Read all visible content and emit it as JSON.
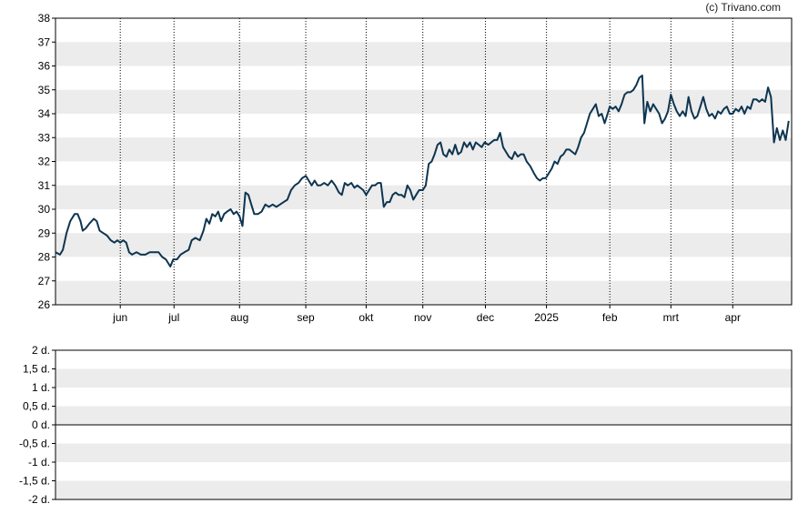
{
  "credit": "(c) Trivano.com",
  "colors": {
    "line": "#0d3550",
    "band": "#ececec",
    "grid": "#000000",
    "frame": "#000000"
  },
  "chart_data": [
    {
      "type": "line",
      "title": "",
      "xlabel": "",
      "ylabel": "",
      "ylim": [
        26,
        38
      ],
      "yticks": [
        26,
        27,
        28,
        29,
        30,
        31,
        32,
        33,
        34,
        35,
        36,
        37,
        38
      ],
      "ytick_labels": [
        "26",
        "27",
        "28",
        "29",
        "30",
        "31",
        "32",
        "33",
        "34",
        "35",
        "36",
        "37",
        "38"
      ],
      "xlim": [
        0,
        100
      ],
      "xticks": [
        {
          "x": 8.8,
          "label": "jun"
        },
        {
          "x": 16.1,
          "label": "jul"
        },
        {
          "x": 25.0,
          "label": "aug"
        },
        {
          "x": 34.0,
          "label": "sep"
        },
        {
          "x": 42.2,
          "label": "okt"
        },
        {
          "x": 49.9,
          "label": "nov"
        },
        {
          "x": 58.4,
          "label": "dec"
        },
        {
          "x": 66.7,
          "label": "2025"
        },
        {
          "x": 75.3,
          "label": "feb"
        },
        {
          "x": 83.6,
          "label": "mrt"
        },
        {
          "x": 92.0,
          "label": "apr"
        }
      ],
      "grid": "vertical dotted at month ticks, alternating horizontal bands",
      "series": [
        {
          "values": [
            [
              0,
              28.2
            ],
            [
              0.6,
              28.1
            ],
            [
              1.0,
              28.3
            ],
            [
              1.5,
              29.0
            ],
            [
              2.0,
              29.5
            ],
            [
              2.6,
              29.8
            ],
            [
              3.0,
              29.8
            ],
            [
              3.4,
              29.5
            ],
            [
              3.7,
              29.1
            ],
            [
              4.1,
              29.2
            ],
            [
              4.6,
              29.4
            ],
            [
              5.2,
              29.6
            ],
            [
              5.6,
              29.5
            ],
            [
              6.0,
              29.1
            ],
            [
              6.5,
              29.0
            ],
            [
              7.0,
              28.9
            ],
            [
              7.5,
              28.7
            ],
            [
              8.0,
              28.6
            ],
            [
              8.4,
              28.7
            ],
            [
              8.8,
              28.6
            ],
            [
              9.2,
              28.7
            ],
            [
              9.6,
              28.6
            ],
            [
              10.0,
              28.2
            ],
            [
              10.4,
              28.1
            ],
            [
              11.0,
              28.2
            ],
            [
              11.6,
              28.1
            ],
            [
              12.2,
              28.1
            ],
            [
              12.8,
              28.2
            ],
            [
              13.4,
              28.2
            ],
            [
              14.0,
              28.2
            ],
            [
              14.5,
              28.0
            ],
            [
              15.0,
              27.9
            ],
            [
              15.6,
              27.6
            ],
            [
              16.0,
              27.9
            ],
            [
              16.5,
              27.9
            ],
            [
              17.0,
              28.1
            ],
            [
              17.5,
              28.2
            ],
            [
              18.1,
              28.3
            ],
            [
              18.5,
              28.7
            ],
            [
              19.0,
              28.8
            ],
            [
              19.6,
              28.7
            ],
            [
              20.1,
              29.1
            ],
            [
              20.5,
              29.6
            ],
            [
              20.9,
              29.4
            ],
            [
              21.3,
              29.8
            ],
            [
              21.7,
              29.7
            ],
            [
              22.1,
              29.9
            ],
            [
              22.5,
              29.5
            ],
            [
              22.9,
              29.8
            ],
            [
              23.3,
              29.9
            ],
            [
              23.8,
              30.0
            ],
            [
              24.2,
              29.8
            ],
            [
              24.6,
              29.9
            ],
            [
              25.0,
              29.7
            ],
            [
              25.4,
              29.3
            ],
            [
              25.8,
              30.7
            ],
            [
              26.2,
              30.6
            ],
            [
              26.6,
              30.2
            ],
            [
              27.0,
              29.8
            ],
            [
              27.5,
              29.8
            ],
            [
              28.0,
              29.9
            ],
            [
              28.5,
              30.2
            ],
            [
              29.0,
              30.1
            ],
            [
              29.5,
              30.2
            ],
            [
              30.0,
              30.1
            ],
            [
              30.5,
              30.2
            ],
            [
              31.0,
              30.3
            ],
            [
              31.5,
              30.4
            ],
            [
              32.0,
              30.8
            ],
            [
              32.5,
              31.0
            ],
            [
              33.0,
              31.1
            ],
            [
              33.5,
              31.3
            ],
            [
              34.0,
              31.4
            ],
            [
              34.4,
              31.2
            ],
            [
              34.8,
              31.0
            ],
            [
              35.2,
              31.2
            ],
            [
              35.6,
              31.0
            ],
            [
              36.0,
              31.0
            ],
            [
              36.5,
              31.1
            ],
            [
              37.0,
              31.0
            ],
            [
              37.5,
              31.2
            ],
            [
              38.0,
              31.0
            ],
            [
              38.5,
              30.7
            ],
            [
              38.9,
              30.6
            ],
            [
              39.3,
              31.1
            ],
            [
              39.7,
              31.0
            ],
            [
              40.2,
              31.1
            ],
            [
              40.6,
              30.9
            ],
            [
              41.0,
              31.0
            ],
            [
              41.4,
              30.9
            ],
            [
              41.8,
              30.8
            ],
            [
              42.2,
              30.6
            ],
            [
              42.6,
              30.8
            ],
            [
              43.0,
              31.0
            ],
            [
              43.4,
              31.0
            ],
            [
              43.8,
              31.1
            ],
            [
              44.2,
              31.1
            ],
            [
              44.6,
              30.1
            ],
            [
              45.0,
              30.3
            ],
            [
              45.4,
              30.3
            ],
            [
              45.8,
              30.6
            ],
            [
              46.2,
              30.7
            ],
            [
              46.6,
              30.6
            ],
            [
              47.0,
              30.6
            ],
            [
              47.4,
              30.5
            ],
            [
              47.8,
              31.0
            ],
            [
              48.2,
              30.8
            ],
            [
              48.6,
              30.4
            ],
            [
              49.0,
              30.6
            ],
            [
              49.4,
              30.8
            ],
            [
              49.9,
              30.8
            ],
            [
              50.3,
              31.0
            ],
            [
              50.7,
              31.9
            ],
            [
              51.1,
              32.0
            ],
            [
              51.5,
              32.3
            ],
            [
              51.9,
              32.7
            ],
            [
              52.3,
              32.8
            ],
            [
              52.7,
              32.3
            ],
            [
              53.1,
              32.2
            ],
            [
              53.5,
              32.5
            ],
            [
              53.9,
              32.3
            ],
            [
              54.3,
              32.7
            ],
            [
              54.7,
              32.3
            ],
            [
              55.1,
              32.4
            ],
            [
              55.5,
              32.8
            ],
            [
              55.9,
              32.6
            ],
            [
              56.3,
              32.8
            ],
            [
              56.7,
              32.5
            ],
            [
              57.1,
              32.8
            ],
            [
              57.5,
              32.7
            ],
            [
              57.9,
              32.6
            ],
            [
              58.3,
              32.8
            ],
            [
              58.8,
              32.7
            ],
            [
              59.2,
              32.8
            ],
            [
              59.6,
              32.9
            ],
            [
              60.0,
              32.9
            ],
            [
              60.4,
              33.2
            ],
            [
              60.8,
              32.6
            ],
            [
              61.2,
              32.4
            ],
            [
              61.6,
              32.2
            ],
            [
              62.0,
              32.1
            ],
            [
              62.4,
              32.4
            ],
            [
              62.8,
              32.2
            ],
            [
              63.2,
              32.3
            ],
            [
              63.6,
              32.3
            ],
            [
              64.0,
              32.0
            ],
            [
              64.5,
              31.8
            ],
            [
              65.0,
              31.5
            ],
            [
              65.4,
              31.3
            ],
            [
              65.8,
              31.2
            ],
            [
              66.2,
              31.3
            ],
            [
              66.6,
              31.3
            ],
            [
              67.0,
              31.5
            ],
            [
              67.4,
              31.7
            ],
            [
              67.8,
              32.0
            ],
            [
              68.2,
              31.9
            ],
            [
              68.6,
              32.2
            ],
            [
              69.0,
              32.3
            ],
            [
              69.4,
              32.5
            ],
            [
              69.8,
              32.5
            ],
            [
              70.2,
              32.4
            ],
            [
              70.6,
              32.3
            ],
            [
              71.0,
              32.6
            ],
            [
              71.4,
              33.0
            ],
            [
              71.8,
              33.2
            ],
            [
              72.2,
              33.6
            ],
            [
              72.6,
              34.0
            ],
            [
              73.0,
              34.2
            ],
            [
              73.4,
              34.4
            ],
            [
              73.8,
              33.9
            ],
            [
              74.2,
              34.0
            ],
            [
              74.6,
              33.6
            ],
            [
              75.0,
              34.0
            ],
            [
              75.3,
              34.3
            ],
            [
              75.7,
              34.2
            ],
            [
              76.1,
              34.3
            ],
            [
              76.5,
              34.1
            ],
            [
              76.9,
              34.4
            ],
            [
              77.3,
              34.8
            ],
            [
              77.7,
              34.9
            ],
            [
              78.1,
              34.9
            ],
            [
              78.5,
              35.0
            ],
            [
              78.9,
              35.2
            ],
            [
              79.3,
              35.5
            ],
            [
              79.7,
              35.6
            ],
            [
              80.0,
              33.6
            ],
            [
              80.4,
              34.5
            ],
            [
              80.8,
              34.1
            ],
            [
              81.2,
              34.4
            ],
            [
              81.6,
              34.2
            ],
            [
              82.0,
              34.0
            ],
            [
              82.4,
              33.6
            ],
            [
              82.8,
              33.8
            ],
            [
              83.2,
              34.1
            ],
            [
              83.6,
              34.8
            ],
            [
              84.0,
              34.4
            ],
            [
              84.4,
              34.1
            ],
            [
              84.8,
              33.9
            ],
            [
              85.2,
              34.1
            ],
            [
              85.6,
              33.9
            ],
            [
              86.0,
              34.7
            ],
            [
              86.4,
              34.1
            ],
            [
              86.8,
              33.8
            ],
            [
              87.2,
              33.9
            ],
            [
              87.6,
              34.3
            ],
            [
              88.0,
              34.7
            ],
            [
              88.4,
              34.2
            ],
            [
              88.8,
              33.9
            ],
            [
              89.2,
              34.0
            ],
            [
              89.6,
              33.8
            ],
            [
              90.0,
              34.1
            ],
            [
              90.4,
              34.0
            ],
            [
              90.8,
              34.2
            ],
            [
              91.2,
              34.3
            ],
            [
              91.6,
              34.0
            ],
            [
              92.0,
              34.0
            ],
            [
              92.4,
              34.2
            ],
            [
              92.8,
              34.1
            ],
            [
              93.2,
              34.3
            ],
            [
              93.6,
              34.0
            ],
            [
              94.0,
              34.3
            ],
            [
              94.4,
              34.2
            ],
            [
              94.8,
              34.6
            ],
            [
              95.2,
              34.6
            ],
            [
              95.6,
              34.5
            ],
            [
              96.0,
              34.6
            ],
            [
              96.4,
              34.5
            ],
            [
              96.8,
              35.1
            ],
            [
              97.2,
              34.7
            ],
            [
              97.6,
              32.8
            ],
            [
              98.0,
              33.4
            ],
            [
              98.4,
              32.9
            ],
            [
              98.8,
              33.3
            ],
            [
              99.2,
              32.9
            ],
            [
              99.6,
              33.7
            ]
          ]
        }
      ]
    },
    {
      "type": "line",
      "title": "",
      "xlabel": "",
      "ylabel": "",
      "ylim": [
        -2,
        2
      ],
      "yticks": [
        2,
        1.5,
        1,
        0.5,
        0,
        -0.5,
        -1,
        -1.5,
        -2
      ],
      "ytick_labels": [
        "2 d.",
        "1,5 d.",
        "1 d.",
        "0,5 d.",
        "0 d.",
        "-0,5 d.",
        "-1 d.",
        "-1,5 d.",
        "-2 d."
      ],
      "grid": "alternating horizontal bands, solid zero line",
      "series": []
    }
  ]
}
